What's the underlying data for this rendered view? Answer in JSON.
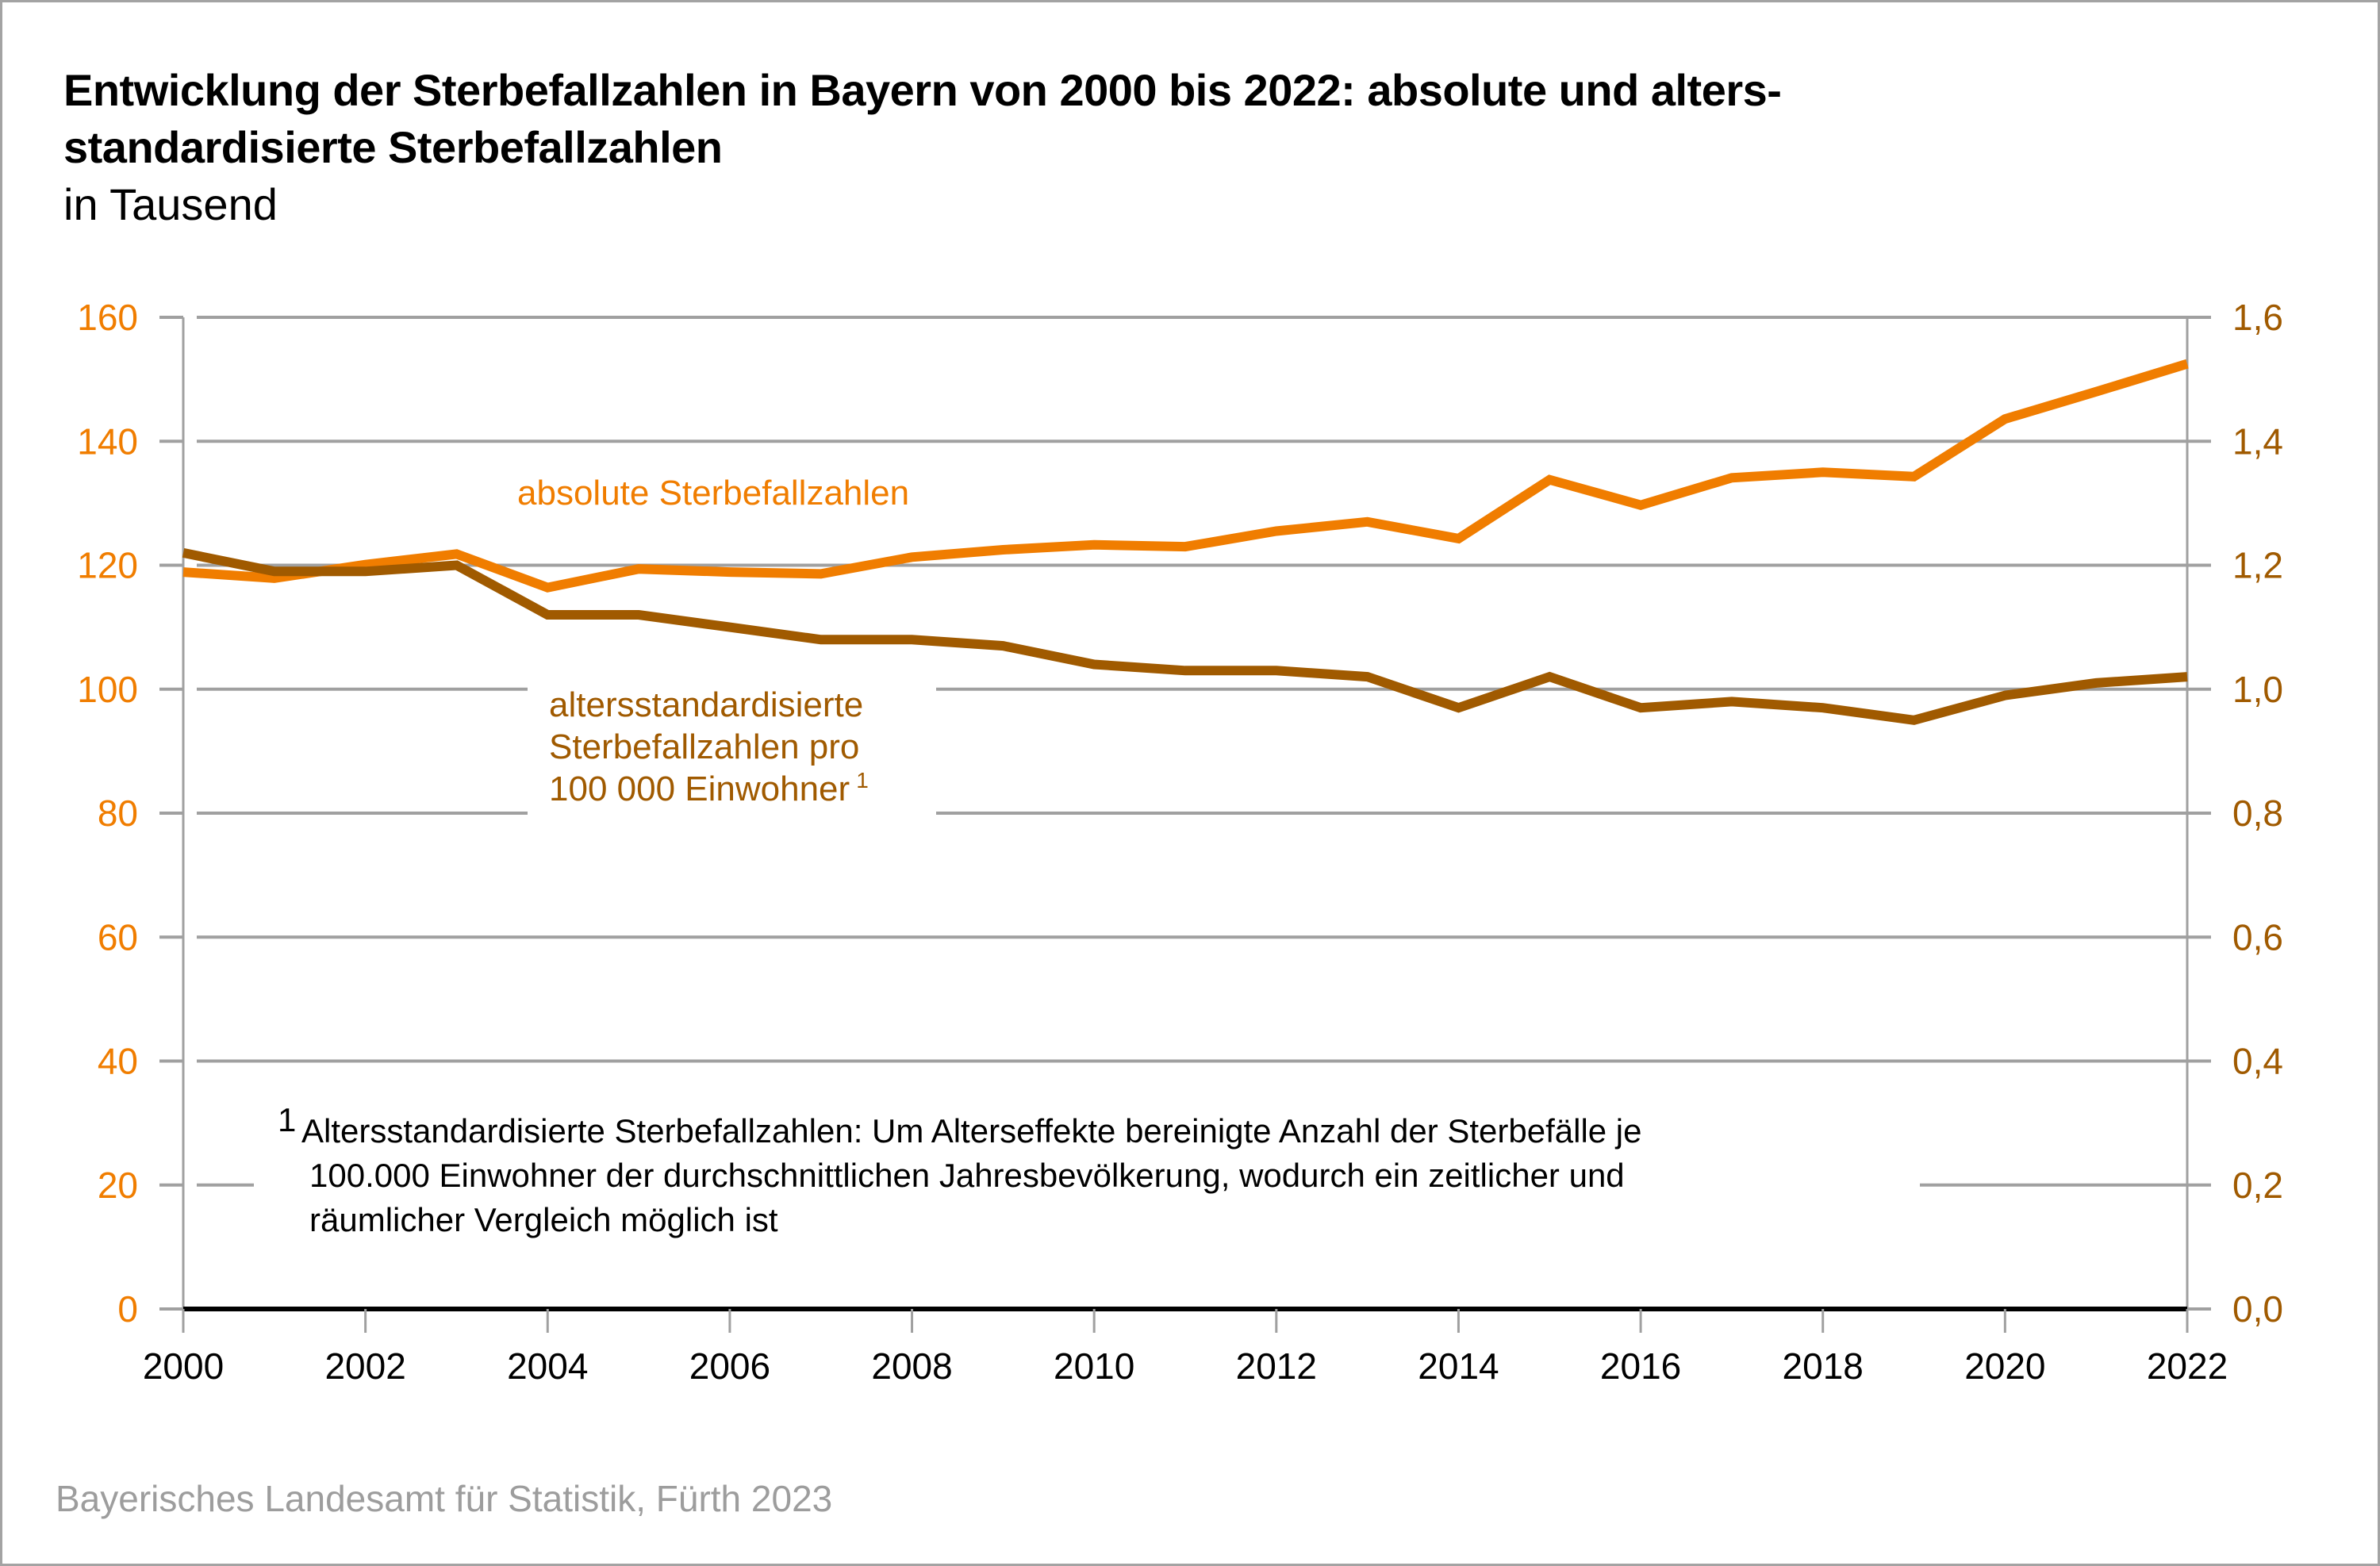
{
  "header": {
    "title_line1": "Entwicklung der Sterbefallzahlen in Bayern von 2000 bis 2022: absolute und alters-",
    "title_line2": "standardisierte Sterbefallzahlen",
    "subtitle": "in Tausend"
  },
  "source": "Bayerisches Landesamt für Statistik, Fürth 2023",
  "colors": {
    "absolute": "#f07d00",
    "standardized": "#a05a00",
    "grid": "#a0a0a0",
    "baseline": "#000000",
    "source_text": "#9d9d9d"
  },
  "chart_data": {
    "type": "line",
    "title": "Entwicklung der Sterbefallzahlen in Bayern von 2000 bis 2022: absolute und altersstandardisierte Sterbefallzahlen",
    "subtitle": "in Tausend",
    "x": [
      2000,
      2001,
      2002,
      2003,
      2004,
      2005,
      2006,
      2007,
      2008,
      2009,
      2010,
      2011,
      2012,
      2013,
      2014,
      2015,
      2016,
      2017,
      2018,
      2019,
      2020,
      2021,
      2022
    ],
    "x_tick_labels": [
      "2000",
      "2002",
      "2004",
      "2006",
      "2008",
      "2010",
      "2012",
      "2014",
      "2016",
      "2018",
      "2020",
      "2022"
    ],
    "x_ticks": [
      2000,
      2002,
      2004,
      2006,
      2008,
      2010,
      2012,
      2014,
      2016,
      2018,
      2020,
      2022
    ],
    "xlim": [
      2000,
      2022
    ],
    "y_left": {
      "ylim": [
        0,
        160
      ],
      "ticks": [
        0,
        20,
        40,
        60,
        80,
        100,
        120,
        140,
        160
      ],
      "tick_labels": [
        "0",
        "20",
        "40",
        "60",
        "80",
        "100",
        "120",
        "140",
        "160"
      ]
    },
    "y_right": {
      "ylim": [
        0,
        1.6
      ],
      "ticks": [
        0,
        0.2,
        0.4,
        0.6,
        0.8,
        1.0,
        1.2,
        1.4,
        1.6
      ],
      "tick_labels": [
        "0,0",
        "0,2",
        "0,4",
        "0,6",
        "0,8",
        "1,0",
        "1,2",
        "1,4",
        "1,6"
      ]
    },
    "grid": true,
    "series": [
      {
        "name": "absolute Sterbefallzahlen",
        "axis": "left",
        "values": [
          118.9,
          117.9,
          120.1,
          121.8,
          116.4,
          119.4,
          118.9,
          118.6,
          121.3,
          122.5,
          123.3,
          123.0,
          125.5,
          127.0,
          124.3,
          133.8,
          129.7,
          134.1,
          135.0,
          134.3,
          143.6,
          148.0,
          152.5
        ]
      },
      {
        "name": "altersstandardisierte Sterbefallzahlen pro 100 000 Einwohner",
        "axis": "right",
        "values": [
          1.22,
          1.19,
          1.19,
          1.2,
          1.12,
          1.12,
          1.1,
          1.08,
          1.08,
          1.07,
          1.04,
          1.03,
          1.03,
          1.02,
          0.97,
          1.02,
          0.97,
          0.98,
          0.97,
          0.95,
          0.99,
          1.01,
          1.02
        ]
      }
    ],
    "annotations": {
      "absolute_label": "absolute Sterbefallzahlen",
      "standardized_label_lines": [
        "altersstandardisierte",
        "Sterbefallzahlen pro",
        "100 000 Einwohner"
      ],
      "footnote_marker": "1",
      "footnote_lines": [
        "Altersstandardisierte Sterbefallzahlen: Um Alterseffekte bereinigte Anzahl der Sterbefälle je",
        "100.000 Einwohner der durchschnittlichen Jahresbevölkerung, wodurch ein zeitlicher und",
        "räumlicher Vergleich möglich ist"
      ]
    },
    "legend": "inline-labels"
  }
}
